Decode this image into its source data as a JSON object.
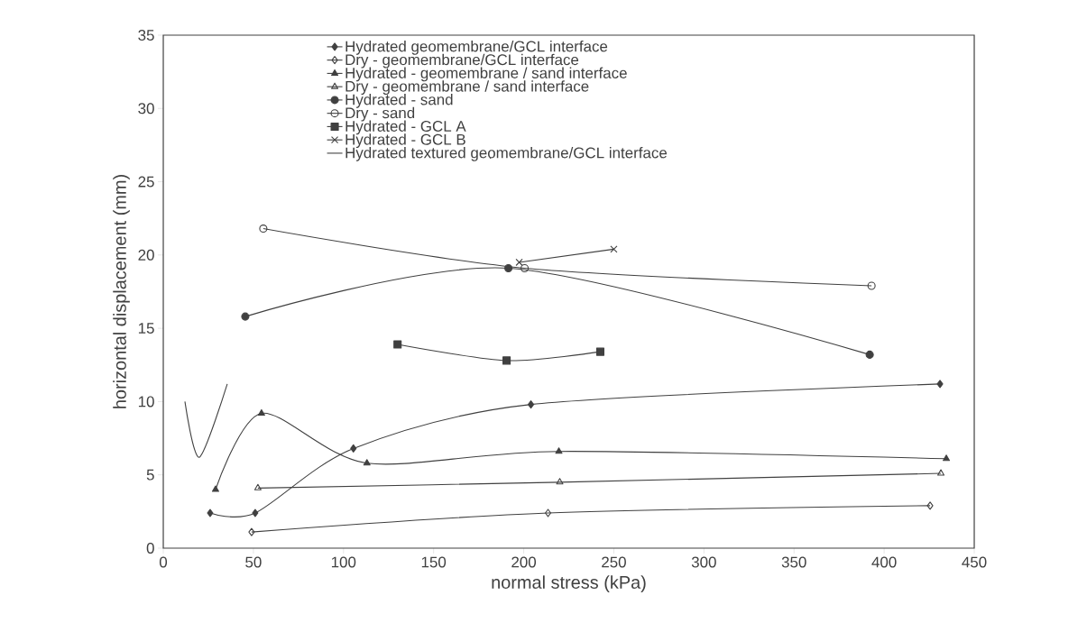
{
  "chart_data": {
    "type": "line",
    "xlabel": "normal stress (kPa)",
    "ylabel": "horizontal displacement (mm)",
    "xlim": [
      0,
      450
    ],
    "xticks": [
      0,
      50,
      100,
      150,
      200,
      250,
      300,
      350,
      400,
      450
    ],
    "ylim": [
      0,
      35
    ],
    "yticks": [
      0,
      5,
      10,
      15,
      20,
      25,
      30,
      35
    ],
    "grid": false,
    "legend": "top",
    "series": [
      {
        "name": "Hydrated geomembrane/GCL interface",
        "color": "#404040",
        "marker": "diamond",
        "x": [
          26,
          51,
          105.5,
          204,
          431
        ],
        "values": [
          2.4,
          2.4,
          6.8,
          9.8,
          11.2
        ]
      },
      {
        "name": "Dry - geomembrane/GCL interface",
        "color": "#404040",
        "marker": "diamond-open",
        "x": [
          49,
          213.5,
          425.5
        ],
        "values": [
          1.1,
          2.4,
          2.9
        ]
      },
      {
        "name": "Hydrated - geomembrane / sand interface",
        "color": "#404040",
        "marker": "triangle",
        "x": [
          29,
          54.5,
          113,
          219.5,
          434.5
        ],
        "values": [
          4.0,
          9.2,
          5.8,
          6.6,
          6.1
        ]
      },
      {
        "name": "Dry - geomembrane / sand interface",
        "color": "#404040",
        "marker": "triangle-open",
        "x": [
          52.5,
          220,
          431.5
        ],
        "values": [
          4.1,
          4.5,
          5.1
        ]
      },
      {
        "name": "Hydrated - sand",
        "color": "#404040",
        "marker": "circle",
        "x": [
          45.5,
          191.5,
          392
        ],
        "values": [
          15.8,
          19.1,
          13.2
        ]
      },
      {
        "name": "Dry - sand",
        "color": "#404040",
        "marker": "circle-open",
        "x": [
          55.5,
          200.5,
          393
        ],
        "values": [
          21.8,
          19.1,
          17.9
        ]
      },
      {
        "name": "Hydrated - GCL A",
        "color": "#404040",
        "marker": "square",
        "x": [
          130,
          190.5,
          242.5
        ],
        "values": [
          13.9,
          12.8,
          13.4
        ]
      },
      {
        "name": "Hydrated - GCL B",
        "color": "#404040",
        "marker": "cross",
        "x": [
          197.5,
          250
        ],
        "values": [
          19.5,
          20.4
        ]
      },
      {
        "name": "Hydrated textured geomembrane/GCL interface",
        "color": "#404040",
        "marker": "none",
        "x": [
          12,
          20,
          35.5
        ],
        "values": [
          10.0,
          6.2,
          11.2
        ]
      }
    ]
  }
}
